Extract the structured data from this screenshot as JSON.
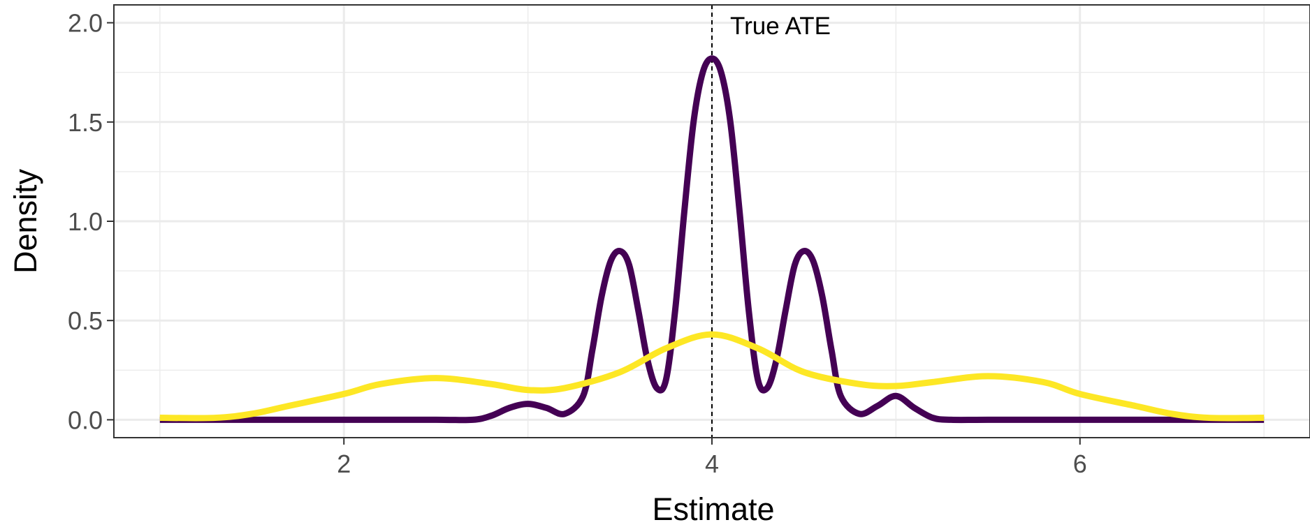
{
  "chart_data": {
    "type": "line",
    "title": "",
    "xlabel": "Estimate",
    "ylabel": "Density",
    "xlim": [
      0.75,
      7.25
    ],
    "ylim": [
      -0.09,
      2.09
    ],
    "x_ticks": [
      2,
      4,
      6
    ],
    "x_tick_labels": [
      "2",
      "4",
      "6"
    ],
    "y_ticks": [
      0,
      0.5,
      1,
      1.5,
      2
    ],
    "y_tick_labels": [
      "0.0",
      "0.5",
      "1.0",
      "1.5",
      "2.0"
    ],
    "x_minor_ticks": [
      1,
      3,
      5,
      7
    ],
    "y_minor_ticks": [
      0.25,
      0.75,
      1.25,
      1.75
    ],
    "grid": true,
    "legend": "none",
    "reference_line": {
      "x": 4,
      "label": "True ATE",
      "style": "dashed",
      "color": "#000000"
    },
    "series": [
      {
        "color": "#440154",
        "x": [
          1.0,
          1.5,
          2.0,
          2.5,
          2.7,
          2.8,
          2.9,
          3.0,
          3.1,
          3.2,
          3.3,
          3.35,
          3.4,
          3.45,
          3.5,
          3.55,
          3.6,
          3.65,
          3.7,
          3.75,
          3.8,
          3.85,
          3.9,
          3.95,
          4.0,
          4.05,
          4.1,
          4.15,
          4.2,
          4.25,
          4.3,
          4.35,
          4.4,
          4.45,
          4.5,
          4.55,
          4.6,
          4.65,
          4.7,
          4.8,
          4.9,
          5.0,
          5.1,
          5.2,
          5.3,
          5.5,
          6.0,
          6.5,
          7.0
        ],
        "y": [
          0.0,
          0.0,
          0.0,
          0.0,
          0.0,
          0.02,
          0.06,
          0.08,
          0.06,
          0.03,
          0.12,
          0.35,
          0.62,
          0.8,
          0.85,
          0.78,
          0.55,
          0.3,
          0.16,
          0.2,
          0.55,
          1.05,
          1.5,
          1.75,
          1.82,
          1.75,
          1.5,
          1.05,
          0.55,
          0.2,
          0.16,
          0.3,
          0.55,
          0.78,
          0.85,
          0.8,
          0.62,
          0.35,
          0.12,
          0.03,
          0.07,
          0.12,
          0.06,
          0.01,
          0.0,
          0.0,
          0.0,
          0.0,
          0.0
        ]
      },
      {
        "color": "#fde725",
        "x": [
          1.0,
          1.3,
          1.5,
          1.7,
          2.0,
          2.2,
          2.5,
          2.8,
          3.0,
          3.2,
          3.5,
          3.75,
          4.0,
          4.25,
          4.5,
          4.8,
          5.0,
          5.2,
          5.5,
          5.8,
          6.0,
          6.3,
          6.5,
          6.7,
          7.0
        ],
        "y": [
          0.01,
          0.01,
          0.03,
          0.07,
          0.13,
          0.18,
          0.21,
          0.18,
          0.15,
          0.16,
          0.24,
          0.36,
          0.43,
          0.36,
          0.24,
          0.18,
          0.17,
          0.19,
          0.22,
          0.19,
          0.13,
          0.07,
          0.03,
          0.01,
          0.01
        ]
      }
    ]
  }
}
